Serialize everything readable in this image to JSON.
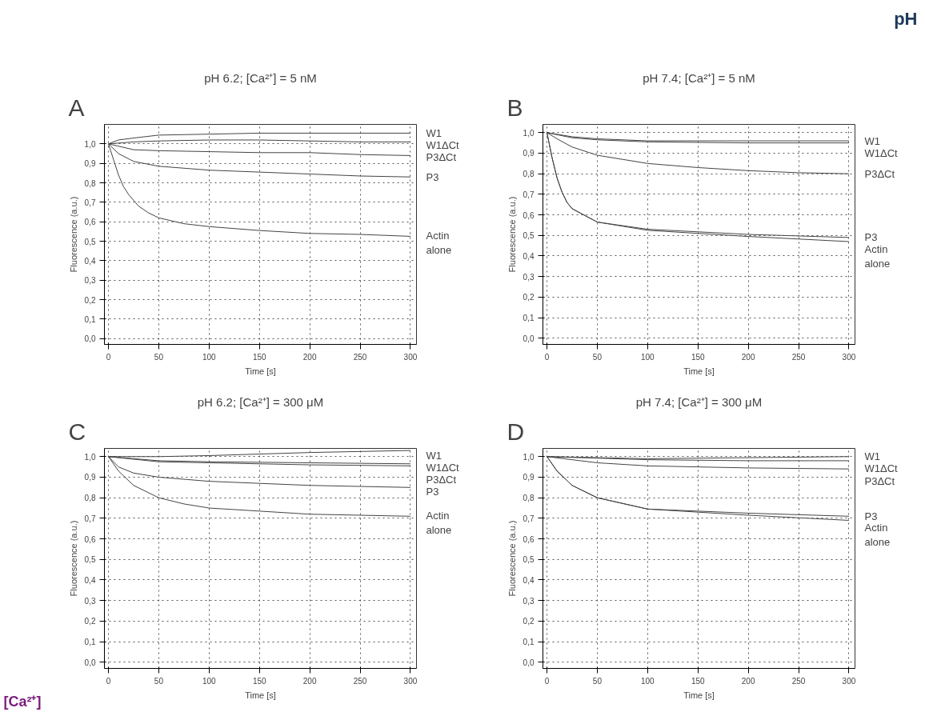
{
  "chart_data": [
    {
      "type": "other",
      "annotations": [
        "pH",
        "[Ca²⁺]"
      ]
    },
    {
      "type": "line",
      "title": "pH 6.2; [Ca²⁺] = 5 nM",
      "annotations": [
        "A"
      ],
      "xlabel": "Time [s]",
      "ylabel": "Fluorescence (a.u.)",
      "xlim": [
        -4,
        306
      ],
      "ylim": [
        -0.03,
        1.1
      ],
      "xticks": [
        0,
        50,
        100,
        150,
        200,
        250,
        300
      ],
      "yticks": [
        {
          "value": 0,
          "label": "0,0"
        },
        {
          "value": 0.1,
          "label": "0,1"
        },
        {
          "value": 0.2,
          "label": "0,2"
        },
        {
          "value": 0.3,
          "label": "0,3"
        },
        {
          "value": 0.4,
          "label": "0,4"
        },
        {
          "value": 0.5,
          "label": "0,5"
        },
        {
          "value": 0.6,
          "label": "0,6"
        },
        {
          "value": 0.7,
          "label": "0,7"
        },
        {
          "value": 0.8,
          "label": "0,8"
        },
        {
          "value": 0.9,
          "label": "0,9"
        },
        {
          "value": 1.0,
          "label": "1,0"
        }
      ],
      "grid": true,
      "series": [
        {
          "name": "W1",
          "color": "#444444",
          "x": [
            0,
            10,
            25,
            50,
            100,
            150,
            200,
            250,
            300
          ],
          "values": [
            1.0,
            1.02,
            1.03,
            1.045,
            1.05,
            1.055,
            1.055,
            1.055,
            1.055
          ]
        },
        {
          "name": "W1ΔCt",
          "color": "#444444",
          "x": [
            0,
            25,
            50,
            100,
            150,
            200,
            250,
            300
          ],
          "values": [
            1.0,
            1.01,
            1.015,
            1.02,
            1.02,
            1.015,
            1.01,
            1.01
          ]
        },
        {
          "name": "P3ΔCt",
          "color": "#444444",
          "x": [
            0,
            25,
            50,
            100,
            150,
            200,
            250,
            300
          ],
          "values": [
            1.0,
            0.97,
            0.965,
            0.96,
            0.955,
            0.955,
            0.945,
            0.94
          ]
        },
        {
          "name": "P3",
          "color": "#444444",
          "x": [
            0,
            10,
            25,
            50,
            100,
            150,
            200,
            250,
            300
          ],
          "values": [
            1.0,
            0.95,
            0.91,
            0.885,
            0.865,
            0.855,
            0.845,
            0.835,
            0.83
          ]
        },
        {
          "name": "Actin alone",
          "color": "#444444",
          "x": [
            0,
            5,
            10,
            15,
            20,
            30,
            40,
            50,
            75,
            100,
            150,
            200,
            250,
            300
          ],
          "values": [
            1.0,
            0.92,
            0.84,
            0.78,
            0.74,
            0.68,
            0.645,
            0.62,
            0.59,
            0.575,
            0.555,
            0.54,
            0.535,
            0.525
          ]
        }
      ]
    },
    {
      "type": "line",
      "title": "pH 7.4; [Ca²⁺] = 5 nM",
      "annotations": [
        "B"
      ],
      "xlabel": "Time [s]",
      "ylabel": "Fluorescence (a.u.)",
      "xlim": [
        -4,
        306
      ],
      "ylim": [
        -0.03,
        1.04
      ],
      "xticks": [
        0,
        50,
        100,
        150,
        200,
        250,
        300
      ],
      "yticks": [
        {
          "value": 0,
          "label": "0,0"
        },
        {
          "value": 0.1,
          "label": "0,1"
        },
        {
          "value": 0.2,
          "label": "0,2"
        },
        {
          "value": 0.3,
          "label": "0,3"
        },
        {
          "value": 0.4,
          "label": "0,4"
        },
        {
          "value": 0.5,
          "label": "0,5"
        },
        {
          "value": 0.6,
          "label": "0,6"
        },
        {
          "value": 0.7,
          "label": "0,7"
        },
        {
          "value": 0.8,
          "label": "0,8"
        },
        {
          "value": 0.9,
          "label": "0,9"
        },
        {
          "value": 1.0,
          "label": "1,0"
        }
      ],
      "grid": true,
      "series": [
        {
          "name": "W1",
          "color": "#444444",
          "x": [
            0,
            25,
            50,
            100,
            200,
            300
          ],
          "values": [
            1.0,
            0.98,
            0.97,
            0.96,
            0.96,
            0.96
          ]
        },
        {
          "name": "W1ΔCt",
          "color": "#444444",
          "x": [
            0,
            25,
            50,
            100,
            200,
            300
          ],
          "values": [
            1.0,
            0.975,
            0.965,
            0.955,
            0.95,
            0.95
          ]
        },
        {
          "name": "P3ΔCt",
          "color": "#444444",
          "x": [
            0,
            10,
            25,
            50,
            100,
            150,
            200,
            250,
            300
          ],
          "values": [
            1.0,
            0.97,
            0.93,
            0.89,
            0.85,
            0.83,
            0.815,
            0.805,
            0.8
          ]
        },
        {
          "name": "P3",
          "color": "#444444",
          "x": [
            0,
            5,
            10,
            15,
            20,
            25,
            50,
            100,
            200,
            300
          ],
          "values": [
            1.0,
            0.88,
            0.78,
            0.71,
            0.66,
            0.63,
            0.565,
            0.53,
            0.505,
            0.49
          ]
        },
        {
          "name": "Actin alone",
          "color": "#444444",
          "x": [
            0,
            5,
            10,
            15,
            20,
            25,
            50,
            100,
            200,
            300
          ],
          "values": [
            1.0,
            0.88,
            0.78,
            0.71,
            0.66,
            0.63,
            0.565,
            0.525,
            0.495,
            0.47
          ]
        }
      ]
    },
    {
      "type": "line",
      "title": "pH 6.2; [Ca²⁺] = 300 μM",
      "annotations": [
        "C"
      ],
      "xlabel": "Time [s]",
      "ylabel": "Fluorescence (a.u.)",
      "xlim": [
        -4,
        306
      ],
      "ylim": [
        -0.03,
        1.04
      ],
      "xticks": [
        0,
        50,
        100,
        150,
        200,
        250,
        300
      ],
      "yticks": [
        {
          "value": 0,
          "label": "0,0"
        },
        {
          "value": 0.1,
          "label": "0,1"
        },
        {
          "value": 0.2,
          "label": "0,2"
        },
        {
          "value": 0.3,
          "label": "0,3"
        },
        {
          "value": 0.4,
          "label": "0,4"
        },
        {
          "value": 0.5,
          "label": "0,5"
        },
        {
          "value": 0.6,
          "label": "0,6"
        },
        {
          "value": 0.7,
          "label": "0,7"
        },
        {
          "value": 0.8,
          "label": "0,8"
        },
        {
          "value": 0.9,
          "label": "0,9"
        },
        {
          "value": 1.0,
          "label": "1,0"
        }
      ],
      "grid": true,
      "series": [
        {
          "name": "W1",
          "color": "#444444",
          "x": [
            0,
            50,
            100,
            200,
            300
          ],
          "values": [
            1.0,
            1.0,
            1.005,
            1.02,
            1.03
          ]
        },
        {
          "name": "W1ΔCt",
          "color": "#444444",
          "x": [
            0,
            50,
            100,
            200,
            300
          ],
          "values": [
            1.0,
            0.98,
            0.975,
            0.97,
            0.965
          ]
        },
        {
          "name": "P3ΔCt",
          "color": "#444444",
          "x": [
            0,
            50,
            100,
            200,
            300
          ],
          "values": [
            1.0,
            0.975,
            0.97,
            0.96,
            0.955
          ]
        },
        {
          "name": "P3",
          "color": "#444444",
          "x": [
            0,
            10,
            25,
            50,
            100,
            150,
            200,
            250,
            300
          ],
          "values": [
            1.0,
            0.95,
            0.92,
            0.9,
            0.88,
            0.87,
            0.86,
            0.855,
            0.85
          ]
        },
        {
          "name": "Actin alone",
          "color": "#444444",
          "x": [
            0,
            10,
            25,
            50,
            75,
            100,
            150,
            200,
            250,
            300
          ],
          "values": [
            1.0,
            0.93,
            0.86,
            0.8,
            0.77,
            0.75,
            0.735,
            0.72,
            0.715,
            0.71
          ]
        }
      ]
    },
    {
      "type": "line",
      "title": "pH 7.4; [Ca²⁺] = 300 μM",
      "annotations": [
        "D"
      ],
      "xlabel": "Time [s]",
      "ylabel": "Fluorescence (a.u.)",
      "xlim": [
        -4,
        306
      ],
      "ylim": [
        -0.03,
        1.04
      ],
      "xticks": [
        0,
        50,
        100,
        150,
        200,
        250,
        300
      ],
      "yticks": [
        {
          "value": 0,
          "label": "0,0"
        },
        {
          "value": 0.1,
          "label": "0,1"
        },
        {
          "value": 0.2,
          "label": "0,2"
        },
        {
          "value": 0.3,
          "label": "0,3"
        },
        {
          "value": 0.4,
          "label": "0,4"
        },
        {
          "value": 0.5,
          "label": "0,5"
        },
        {
          "value": 0.6,
          "label": "0,6"
        },
        {
          "value": 0.7,
          "label": "0,7"
        },
        {
          "value": 0.8,
          "label": "0,8"
        },
        {
          "value": 0.9,
          "label": "0,9"
        },
        {
          "value": 1.0,
          "label": "1,0"
        }
      ],
      "grid": true,
      "series": [
        {
          "name": "W1",
          "color": "#444444",
          "x": [
            0,
            100,
            200,
            300
          ],
          "values": [
            1.0,
            0.99,
            0.995,
            1.0
          ]
        },
        {
          "name": "W1ΔCt",
          "color": "#444444",
          "x": [
            0,
            100,
            200,
            300
          ],
          "values": [
            1.0,
            0.985,
            0.98,
            0.98
          ]
        },
        {
          "name": "P3ΔCt",
          "color": "#444444",
          "x": [
            0,
            50,
            100,
            200,
            300
          ],
          "values": [
            1.0,
            0.97,
            0.955,
            0.945,
            0.94
          ]
        },
        {
          "name": "P3",
          "color": "#444444",
          "x": [
            0,
            10,
            25,
            50,
            100,
            200,
            300
          ],
          "values": [
            1.0,
            0.93,
            0.86,
            0.8,
            0.745,
            0.725,
            0.71
          ]
        },
        {
          "name": "Actin alone",
          "color": "#444444",
          "x": [
            0,
            10,
            25,
            50,
            100,
            200,
            300
          ],
          "values": [
            1.0,
            0.93,
            0.86,
            0.8,
            0.745,
            0.715,
            0.69
          ]
        }
      ]
    }
  ]
}
